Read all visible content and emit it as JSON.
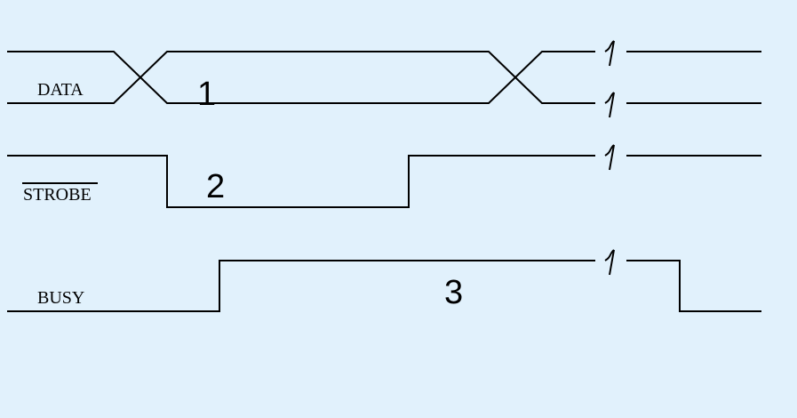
{
  "colors": {
    "background": "#e1f1fc",
    "line": "#000000",
    "text": "#000000"
  },
  "signals": {
    "data": {
      "name": "DATA"
    },
    "strobe": {
      "name": "STROBE",
      "active_low": true
    },
    "busy": {
      "name": "BUSY"
    }
  },
  "markers": {
    "one": "1",
    "two": "2",
    "three": "3"
  }
}
